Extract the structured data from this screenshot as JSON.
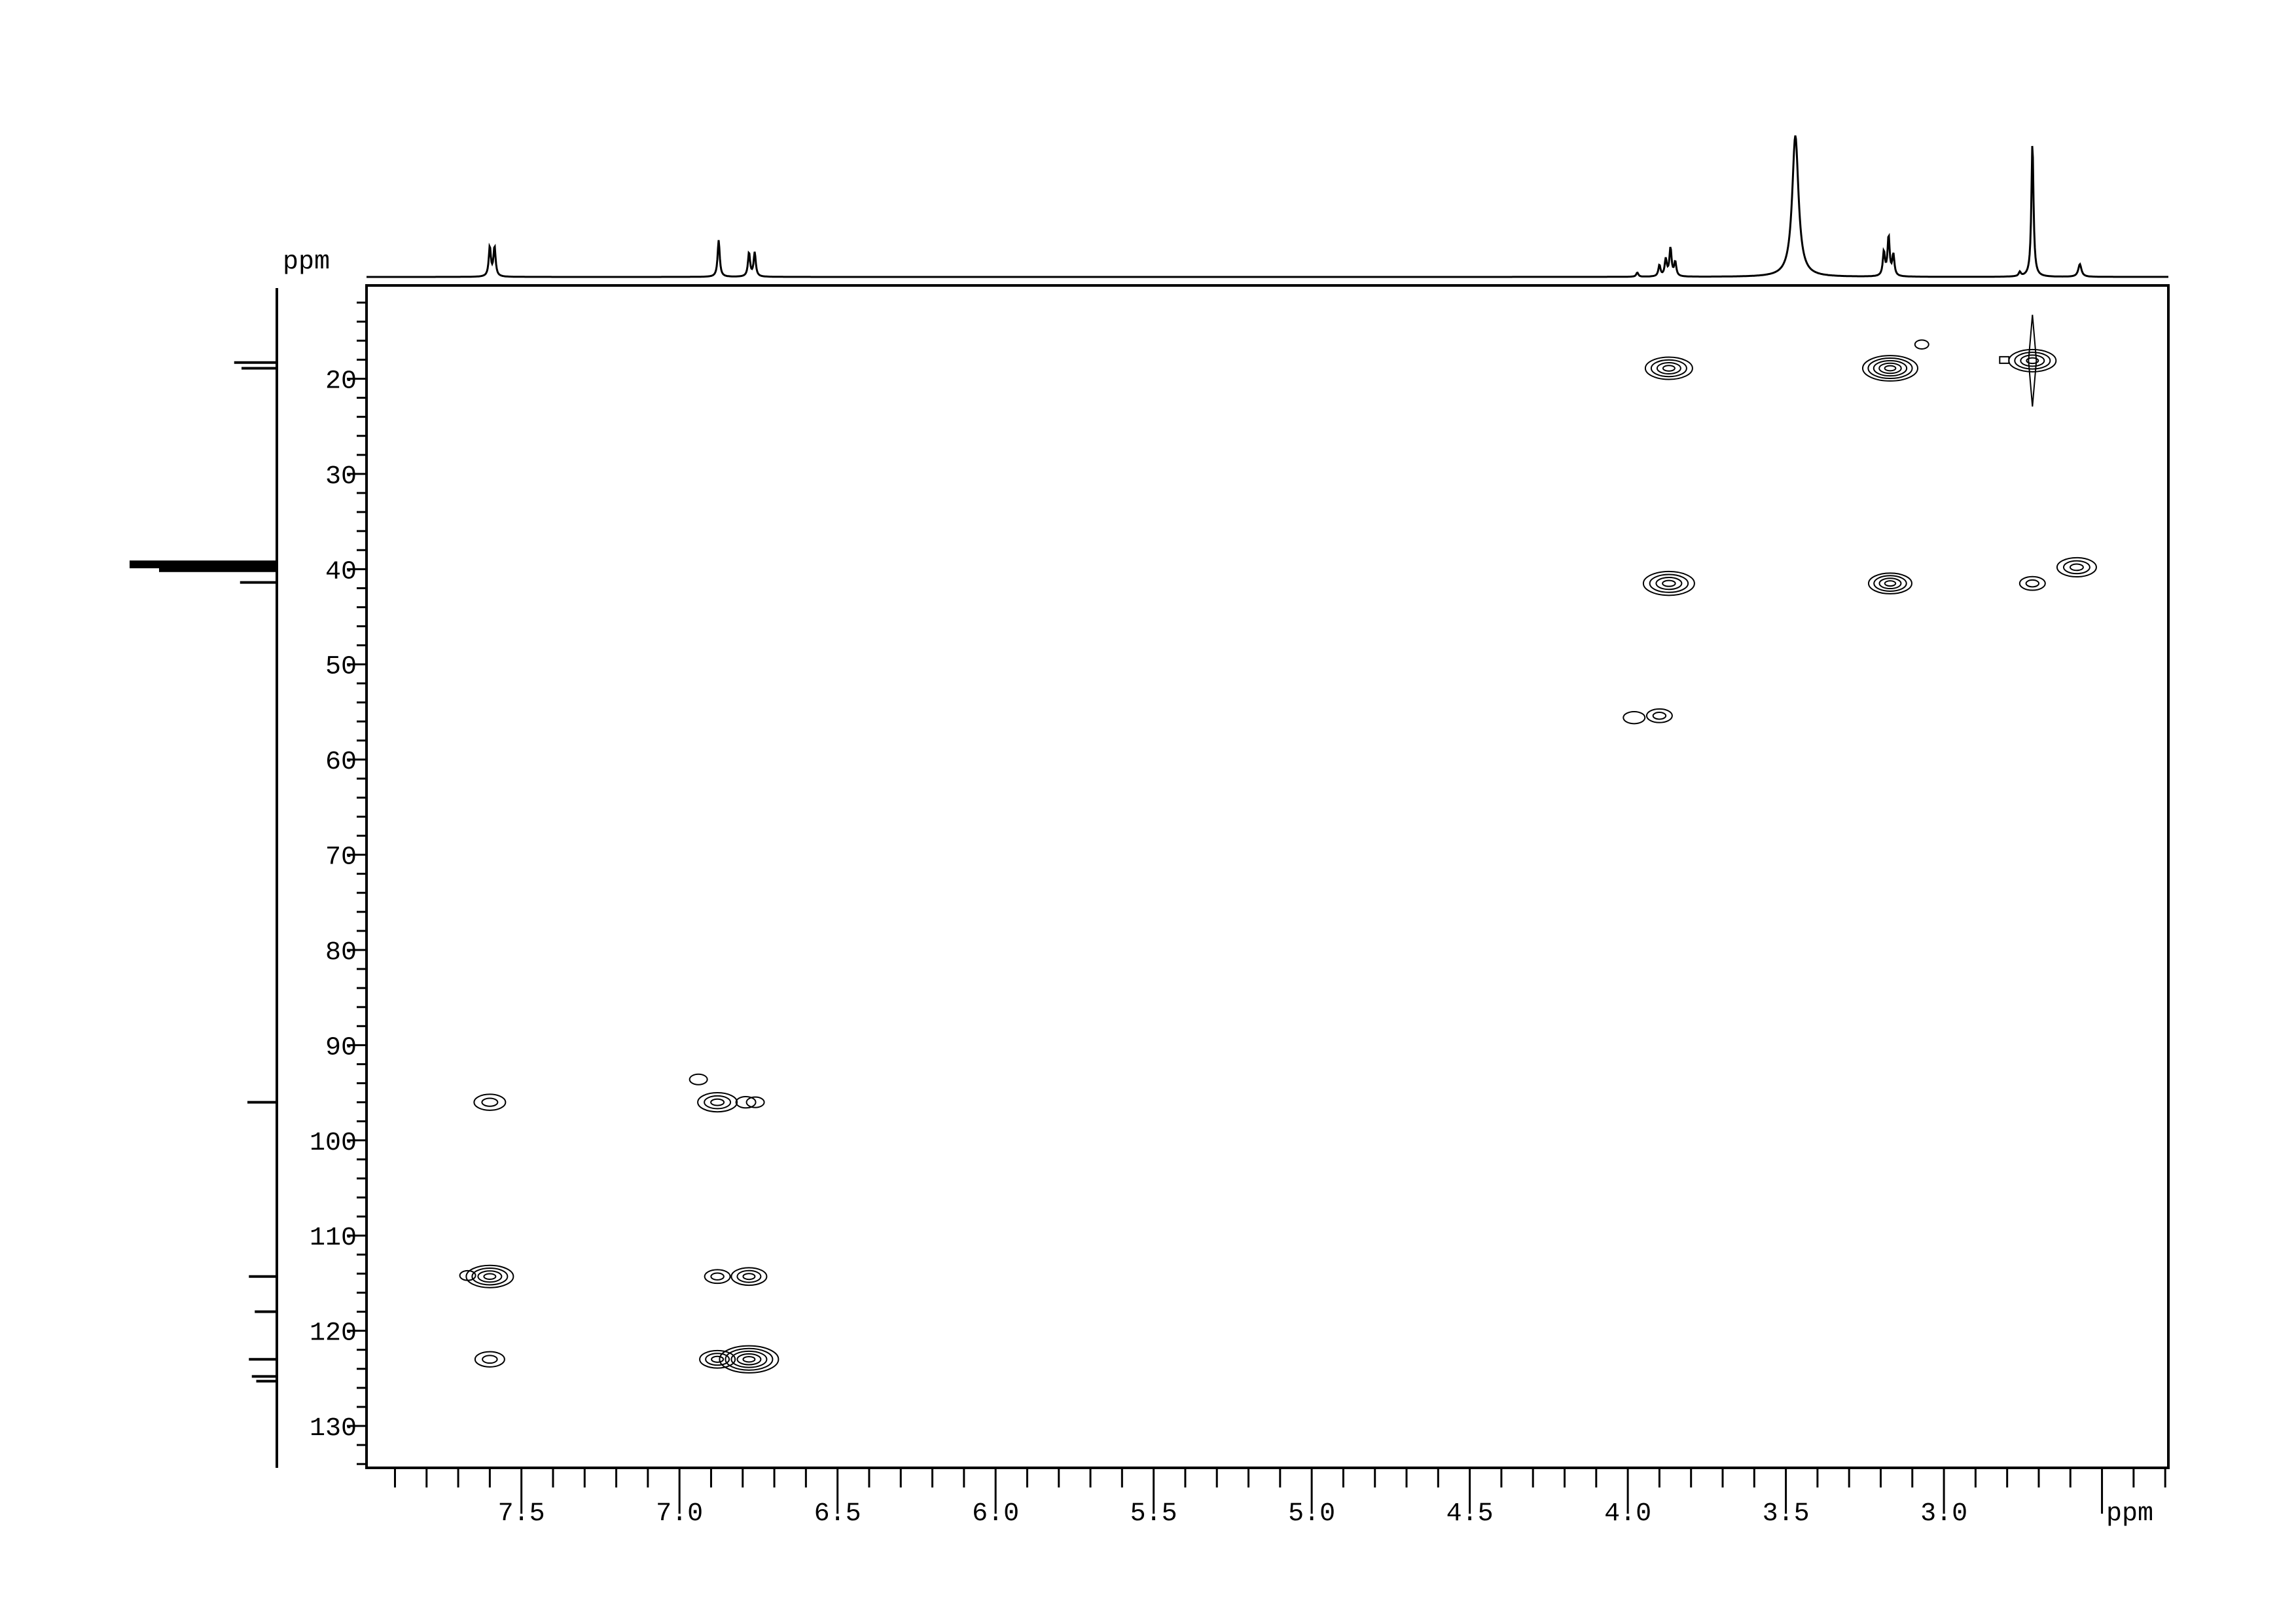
{
  "chart_data": {
    "type": "contour",
    "xlabel": "ppm",
    "ylabel": "ppm",
    "xlim": [
      7.99,
      2.29
    ],
    "ylim": [
      10.2,
      134.4
    ],
    "x_axis_reversed": true,
    "y_axis_downward_increasing": true,
    "grid": false,
    "x_ticks": [
      "7.5",
      "7.0",
      "6.5",
      "6.0",
      "5.5",
      "5.0",
      "4.5",
      "4.0",
      "3.5",
      "3.0"
    ],
    "y_ticks": [
      "20",
      "30",
      "40",
      "50",
      "60",
      "70",
      "80",
      "90",
      "100",
      "110",
      "120",
      "130"
    ],
    "cross_peaks": [
      {
        "x": 3.87,
        "y": 18.9,
        "size": 1.0
      },
      {
        "x": 3.17,
        "y": 18.9,
        "size": 1.2
      },
      {
        "x": 2.72,
        "y": 18.1,
        "size": 1.0,
        "streak": true
      },
      {
        "x": 3.07,
        "y": 16.4,
        "size": 0.15
      },
      {
        "x": 3.87,
        "y": 41.5,
        "size": 1.1
      },
      {
        "x": 3.17,
        "y": 41.5,
        "size": 0.9
      },
      {
        "x": 2.72,
        "y": 41.5,
        "size": 0.45
      },
      {
        "x": 2.58,
        "y": 39.8,
        "size": 0.8
      },
      {
        "x": 3.98,
        "y": 55.6,
        "size": 0.35
      },
      {
        "x": 3.9,
        "y": 55.4,
        "size": 0.45
      },
      {
        "x": 7.6,
        "y": 96.0,
        "size": 0.6
      },
      {
        "x": 6.88,
        "y": 96.0,
        "size": 0.8
      },
      {
        "x": 6.79,
        "y": 96.0,
        "size": 0.3
      },
      {
        "x": 6.76,
        "y": 96.0,
        "size": 0.25
      },
      {
        "x": 6.94,
        "y": 93.6,
        "size": 0.25
      },
      {
        "x": 7.67,
        "y": 114.2,
        "size": 0.2
      },
      {
        "x": 7.6,
        "y": 114.3,
        "size": 1.0
      },
      {
        "x": 6.88,
        "y": 114.3,
        "size": 0.45
      },
      {
        "x": 6.78,
        "y": 114.3,
        "size": 0.7
      },
      {
        "x": 7.6,
        "y": 123.0,
        "size": 0.55
      },
      {
        "x": 6.88,
        "y": 123.0,
        "size": 0.7
      },
      {
        "x": 6.78,
        "y": 123.0,
        "size": 1.3
      }
    ],
    "f2_projection_peaks": [
      {
        "x": 7.6,
        "h": 0.21,
        "w": 0.004
      },
      {
        "x": 7.585,
        "h": 0.21,
        "w": 0.004
      },
      {
        "x": 6.876,
        "h": 0.26,
        "w": 0.004
      },
      {
        "x": 6.78,
        "h": 0.17,
        "w": 0.004
      },
      {
        "x": 6.762,
        "h": 0.17,
        "w": 0.004
      },
      {
        "x": 3.97,
        "h": 0.03,
        "w": 0.004
      },
      {
        "x": 3.9,
        "h": 0.08,
        "w": 0.004
      },
      {
        "x": 3.88,
        "h": 0.12,
        "w": 0.004
      },
      {
        "x": 3.865,
        "h": 0.2,
        "w": 0.004
      },
      {
        "x": 3.85,
        "h": 0.1,
        "w": 0.004
      },
      {
        "x": 3.47,
        "h": 1.0,
        "w": 0.012
      },
      {
        "x": 3.19,
        "h": 0.17,
        "w": 0.004
      },
      {
        "x": 3.175,
        "h": 0.28,
        "w": 0.004
      },
      {
        "x": 3.16,
        "h": 0.15,
        "w": 0.004
      },
      {
        "x": 2.76,
        "h": 0.03,
        "w": 0.004
      },
      {
        "x": 2.72,
        "h": 0.95,
        "w": 0.004
      },
      {
        "x": 2.57,
        "h": 0.09,
        "w": 0.006
      }
    ],
    "f1_projection_peaks": [
      {
        "y": 18.3,
        "h": 0.29
      },
      {
        "y": 18.9,
        "h": 0.24
      },
      {
        "y": 39.3,
        "h": 1.0,
        "solid": true
      },
      {
        "y": 39.7,
        "h": 1.0,
        "solid": true
      },
      {
        "y": 40.1,
        "h": 0.8,
        "solid": true
      },
      {
        "y": 41.4,
        "h": 0.25
      },
      {
        "y": 96.0,
        "h": 0.2
      },
      {
        "y": 114.3,
        "h": 0.19
      },
      {
        "y": 118.0,
        "h": 0.15
      },
      {
        "y": 123.0,
        "h": 0.19
      },
      {
        "y": 124.8,
        "h": 0.17
      },
      {
        "y": 125.3,
        "h": 0.14
      }
    ]
  }
}
